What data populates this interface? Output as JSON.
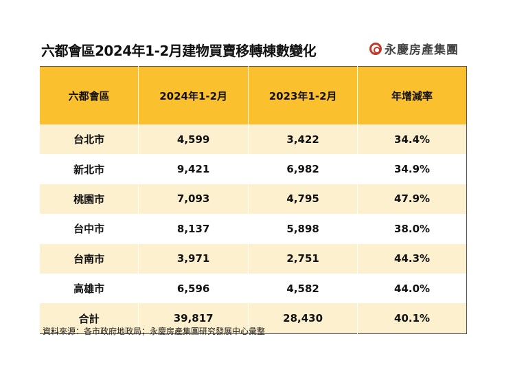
{
  "title": "六都會區2024年1-2月建物買賣移轉棟數變化",
  "logo_text": "永慶房產集團",
  "colors": {
    "header": "#fbc02d",
    "band": "#fdf0cf",
    "logo": "#c0392b"
  },
  "chart_data": {
    "type": "table",
    "columns": [
      "六都會區",
      "2024年1-2月",
      "2023年1-2月",
      "年增減率"
    ],
    "rows": [
      [
        "台北市",
        "4,599",
        "3,422",
        "34.4%"
      ],
      [
        "新北市",
        "9,421",
        "6,982",
        "34.9%"
      ],
      [
        "桃園市",
        "7,093",
        "4,795",
        "47.9%"
      ],
      [
        "台中市",
        "8,137",
        "5,898",
        "38.0%"
      ],
      [
        "台南市",
        "3,971",
        "2,751",
        "44.3%"
      ],
      [
        "高雄市",
        "6,596",
        "4,582",
        "44.0%"
      ],
      [
        "合計",
        "39,817",
        "28,430",
        "40.1%"
      ]
    ]
  },
  "source_note": "資料來源：各市政府地政局；永慶房產集團研究發展中心彙整"
}
